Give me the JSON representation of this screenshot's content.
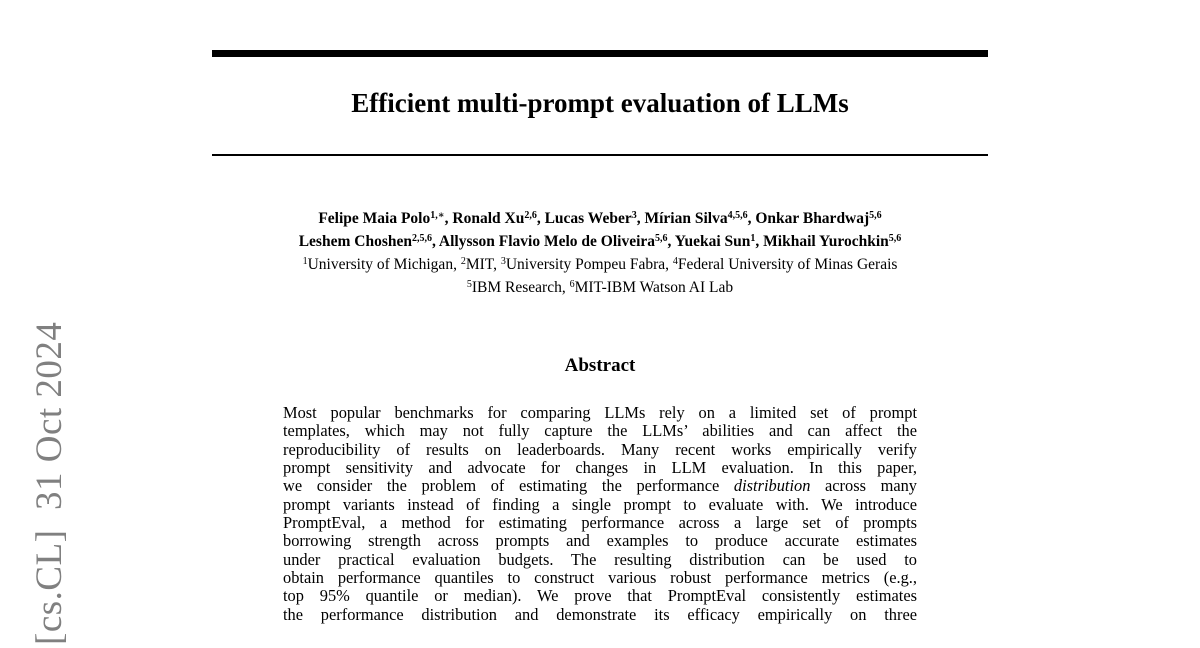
{
  "arxiv_stamp": "[cs.CL]  31 Oct 2024",
  "title": "Efficient multi-prompt evaluation of LLMs",
  "authors_line1": [
    {
      "name": "Felipe Maia Polo",
      "sup": "1,∗",
      "sep": ", "
    },
    {
      "name": "Ronald Xu",
      "sup": "2,6",
      "sep": ", "
    },
    {
      "name": "Lucas Weber",
      "sup": "3",
      "sep": ", "
    },
    {
      "name": "Mírian Silva",
      "sup": "4,5,6",
      "sep": ", "
    },
    {
      "name": "Onkar Bhardwaj",
      "sup": "5,6",
      "sep": ""
    }
  ],
  "authors_line2": [
    {
      "name": "Leshem Choshen",
      "sup": "2,5,6",
      "sep": ", "
    },
    {
      "name": "Allysson Flavio Melo de Oliveira",
      "sup": "5,6",
      "sep": ", "
    },
    {
      "name": "Yuekai Sun",
      "sup": "1",
      "sep": ", "
    },
    {
      "name": "Mikhail Yurochkin",
      "sup": "5,6",
      "sep": ""
    }
  ],
  "affiliations_line1": [
    {
      "sup": "1",
      "name": "University of Michigan",
      "sep": ", "
    },
    {
      "sup": "2",
      "name": "MIT",
      "sep": ", "
    },
    {
      "sup": "3",
      "name": "University Pompeu Fabra",
      "sep": ", "
    },
    {
      "sup": "4",
      "name": "Federal University of Minas Gerais",
      "sep": ""
    }
  ],
  "affiliations_line2": [
    {
      "sup": "5",
      "name": "IBM Research",
      "sep": ", "
    },
    {
      "sup": "6",
      "name": "MIT-IBM Watson AI Lab",
      "sep": ""
    }
  ],
  "abstract_heading": "Abstract",
  "abstract_lines": [
    "Most popular benchmarks for comparing LLMs rely on a limited set of prompt",
    "templates, which may not fully capture the LLMs’ abilities and can affect the",
    "reproducibility of results on leaderboards. Many recent works empirically verify",
    "prompt sensitivity and advocate for changes in LLM evaluation. In this paper,",
    [
      "we consider the problem of estimating the performance ",
      "distribution",
      " across many"
    ],
    "prompt variants instead of finding a single prompt to evaluate with. We introduce",
    "PromptEval, a method for estimating performance across a large set of prompts",
    "borrowing strength across prompts and examples to produce accurate estimates",
    "under practical evaluation budgets. The resulting distribution can be used to",
    "obtain performance quantiles to construct various robust performance metrics (e.g.,",
    "top 95% quantile or median). We prove that PromptEval consistently estimates",
    "the performance distribution and demonstrate its efficacy empirically on three"
  ]
}
